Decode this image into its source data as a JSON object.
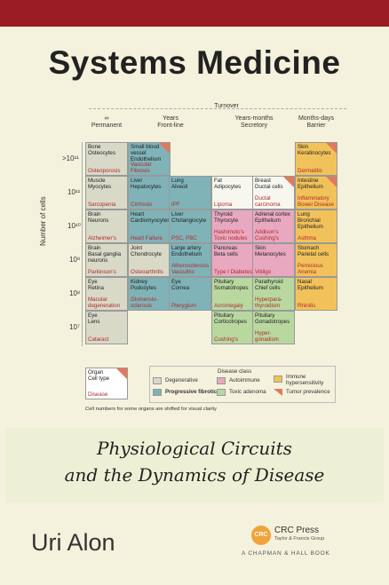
{
  "title": "Systems Medicine",
  "subtitle_line1": "Physiological Circuits",
  "subtitle_line2": "and the Dynamics of Disease",
  "author": "Uri Alon",
  "publisher": {
    "logo": "CRC",
    "name": "CRC Press",
    "group": "Taylor & Francis Group",
    "imprint": "A CHAPMAN & HALL BOOK"
  },
  "figure": {
    "turnover_label": "Turnover",
    "columns": [
      {
        "line1": "∞",
        "line2": "Permanent"
      },
      {
        "line1": "Years",
        "line2": "Front-line"
      },
      {
        "line1": "Years-months",
        "line2": "Secretory"
      },
      {
        "line1": "Months-days",
        "line2": "Barrier"
      }
    ],
    "y_axis_label": "Number of cells",
    "y_ticks": [
      ">10¹¹",
      "10¹¹",
      "10¹⁰",
      "10⁹",
      "10⁸",
      "10⁷"
    ],
    "footnote": "Cell numbers for some organs are shifted for visual clarity",
    "legend": {
      "organ": "Organ",
      "cell_type": "Cell type",
      "disease": "Disease",
      "class_title": "Disease class",
      "classes": [
        "Degenerative",
        "Progressive fibrotic",
        "Autoimmune",
        "Toxic adenoma",
        "Immune hypersensitivity",
        "Tumor prevalence"
      ]
    },
    "cells": [
      {
        "org": "Bone\nOsteocytes",
        "dis": "Osteoporosis"
      },
      {
        "org": "Small blood vessel\nEndothelium",
        "dis": "Vascular Fibrosis"
      },
      {
        "org": "Skin\nKeratinocytes",
        "dis": "Dermatitis"
      },
      {
        "org": "Muscle\nMyocytes",
        "dis": "Sarcopenia"
      },
      {
        "org": "Liver\nHepatocytes",
        "dis": "Cirrhosis"
      },
      {
        "org": "Lung\nAlveoli",
        "dis": "IPF"
      },
      {
        "org": "Fat\nAdipocytes",
        "dis": "Lipoma"
      },
      {
        "org": "Breast\nDuctal cells",
        "dis": "Ductal carcinoma"
      },
      {
        "org": "Intestine\nEpithelium",
        "dis": "Inflammatory Bowel Disease"
      },
      {
        "org": "Brain\nNeurons",
        "dis": "Alzheimer's"
      },
      {
        "org": "Heart\nCardiomyocytes",
        "dis": "Heart Failure"
      },
      {
        "org": "Liver\nCholangiocyte",
        "dis": "PSC, PBC"
      },
      {
        "org": "Thyroid\nThyrocyte",
        "dis": "Hashimoto's\nToxic nodules"
      },
      {
        "org": "Adrenal cortex\nEpithelium",
        "dis": "Addison's\nCushing's"
      },
      {
        "org": "Lung\nBronchial\nEpithelium",
        "dis": "Asthma"
      },
      {
        "org": "Brain\nBasal ganglia\nneurons",
        "dis": "Parkinson's"
      },
      {
        "org": "Joint\nChondrocyte",
        "dis": "Osteoarthritis"
      },
      {
        "org": "Large artery\nEndothelium",
        "dis": "Atherosclerosis\nVasculitis"
      },
      {
        "org": "Pancreas\nBeta cells",
        "dis": "Type I Diabetes"
      },
      {
        "org": "Skin\nMelanocytes",
        "dis": "Vitiligo"
      },
      {
        "org": "Stomach\nParietal cells",
        "dis": "Pernicious\nAnemia"
      },
      {
        "org": "Eye\nRetina",
        "dis": "Macular\ndegeneration"
      },
      {
        "org": "Kidney\nPodocytes",
        "dis": "Glomerulo-\nsclerosis"
      },
      {
        "org": "Eye\nCornea",
        "dis": "Pterygium"
      },
      {
        "org": "Pituitary\nSomatotropes",
        "dis": "Acromegaly"
      },
      {
        "org": "Parathyroid\nChief cells",
        "dis": "Hyperpara-\nthyroidism"
      },
      {
        "org": "Nasal\nEpithelium",
        "dis": "Rhinitis"
      },
      {
        "org": "Eye\nLens",
        "dis": "Cataract"
      },
      {
        "org": "Pituitary\nCorticotropes",
        "dis": "Cushing's"
      },
      {
        "org": "Pituitary\nGonadotropes",
        "dis": "Hyper-\ngonadism"
      }
    ]
  },
  "colors": {
    "degenerative": "#d9d9c8",
    "fibrotic": "#7fb3b8",
    "autoimmune": "#e8a8c0",
    "toxic": "#b8d8a0",
    "hypersensitivity": "#f2c25a",
    "tumor": "#e07a5f",
    "accent": "#9b1c23"
  }
}
